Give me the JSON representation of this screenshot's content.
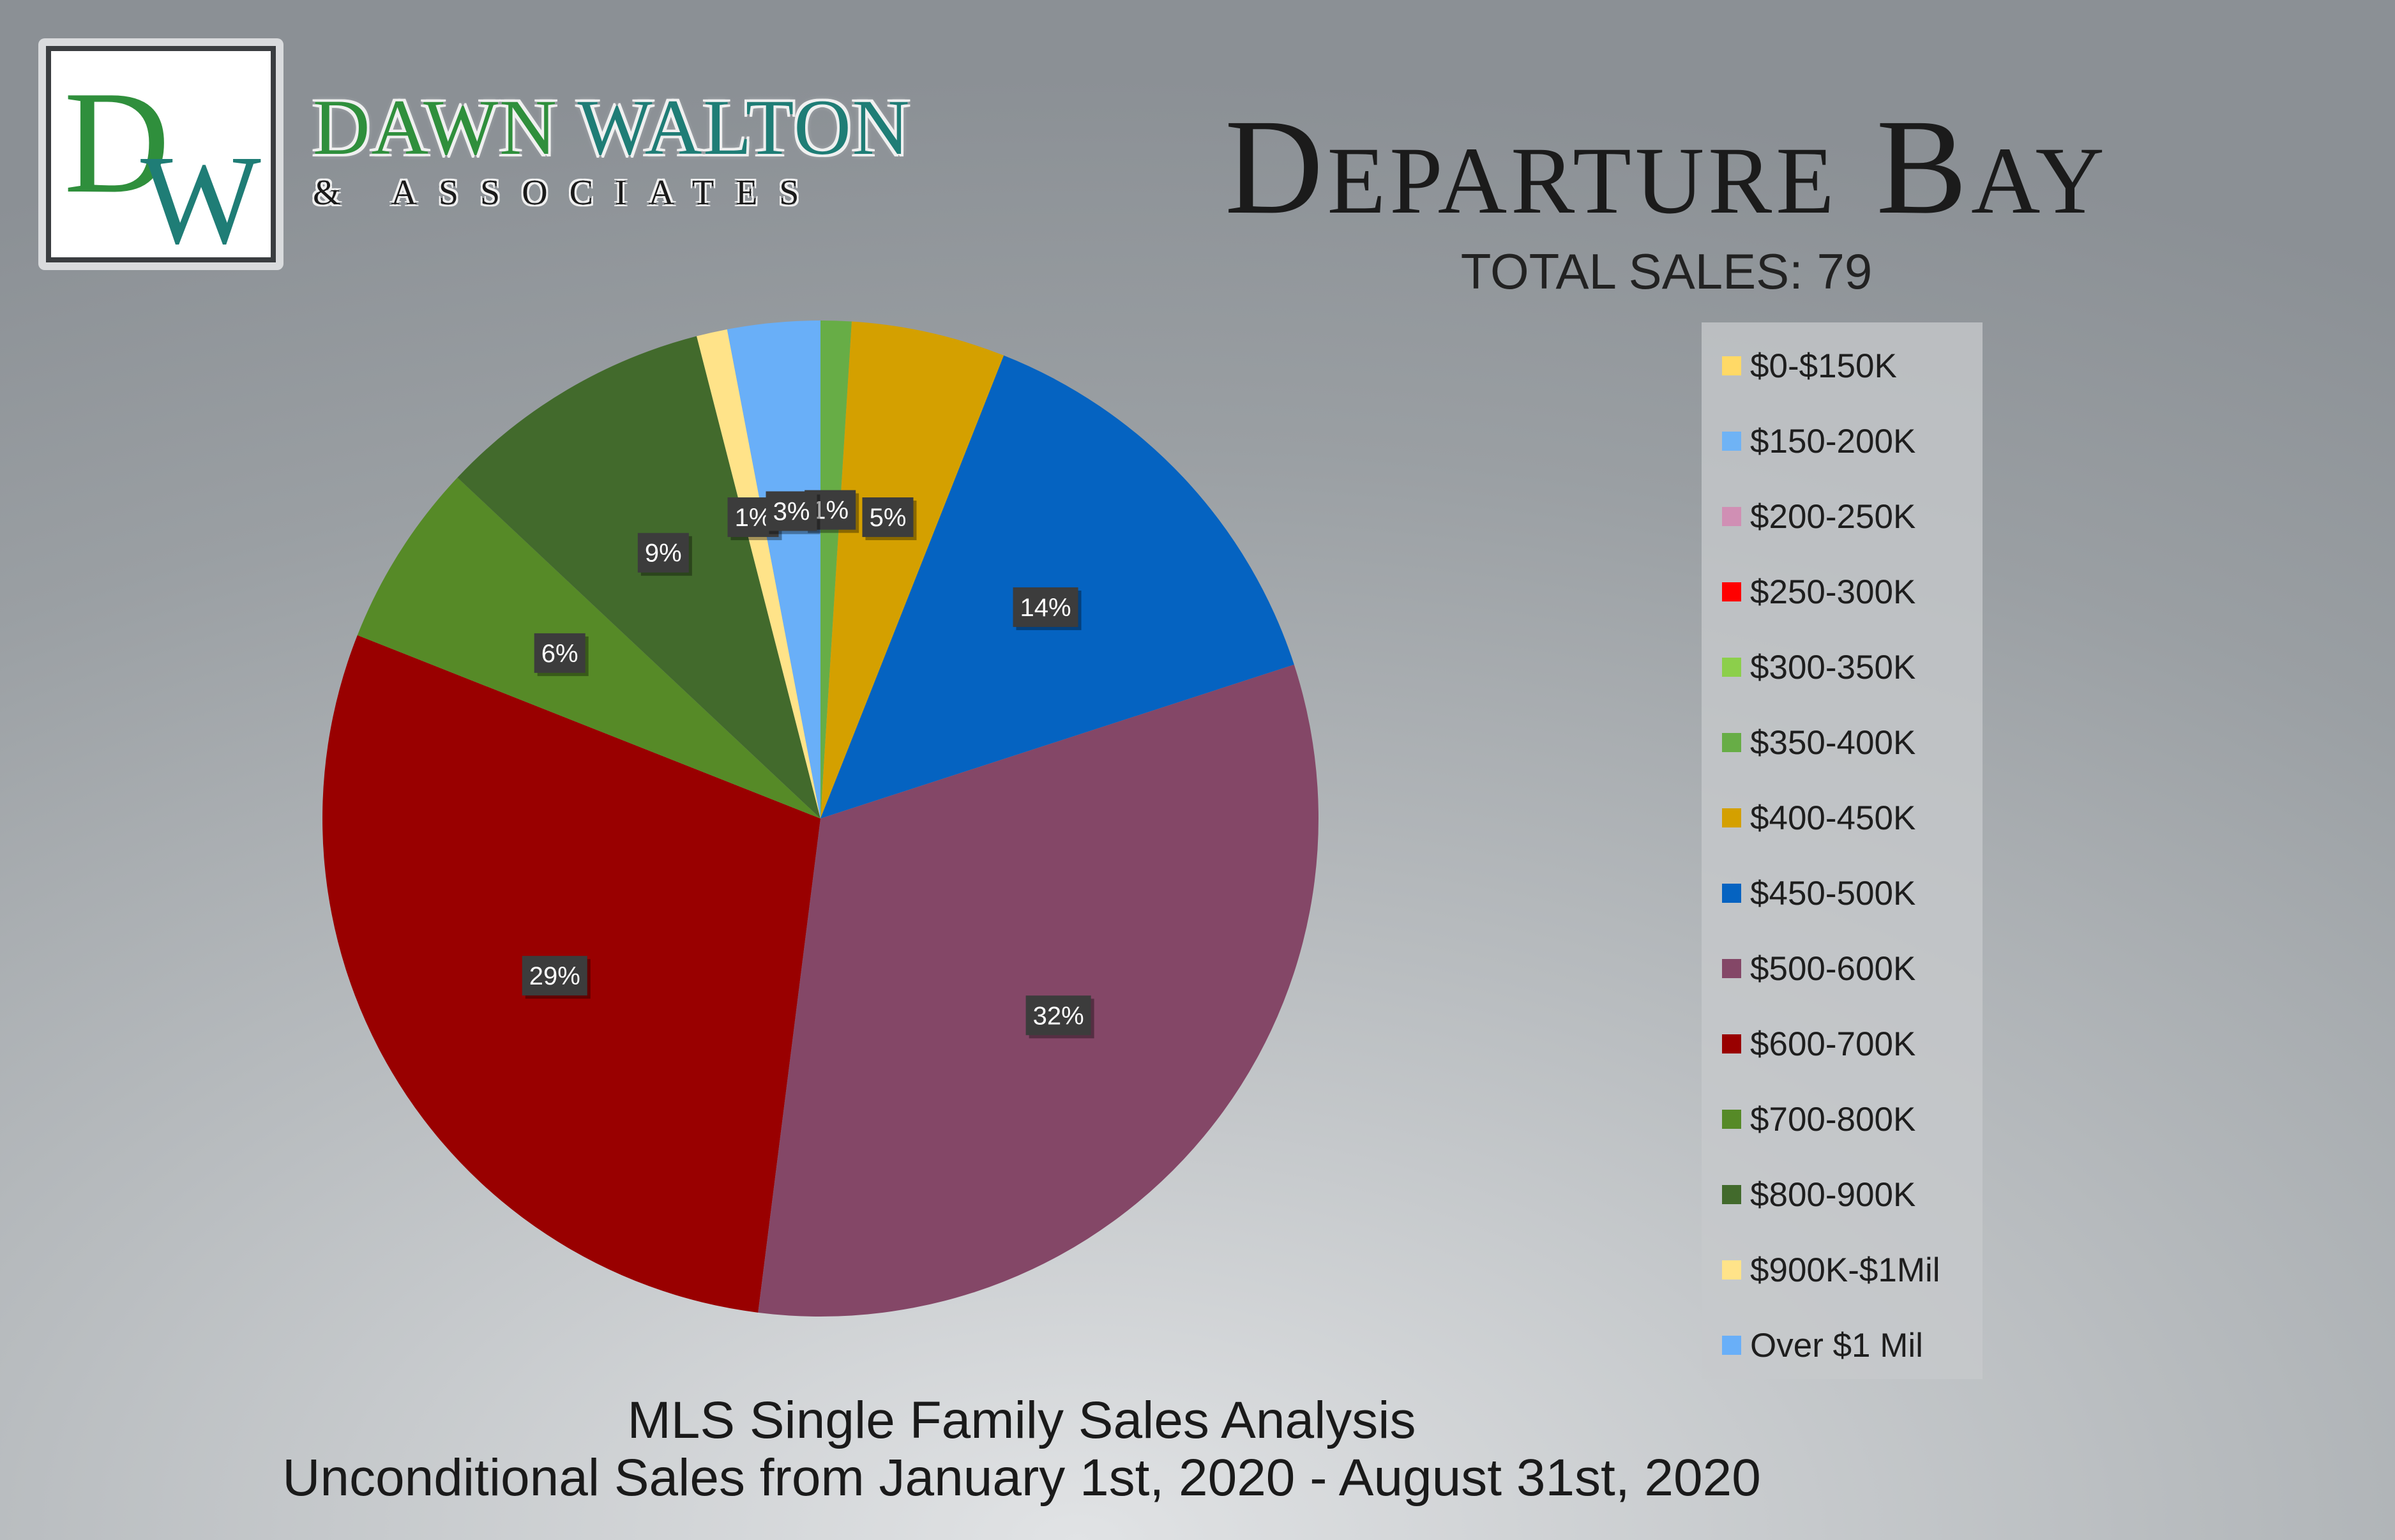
{
  "brand": {
    "logo_letters": "DW",
    "name_first": "DAWN",
    "name_last": "WALTON",
    "subtitle": "& ASSOCIATES"
  },
  "header": {
    "title": "Departure Bay",
    "total_sales": "TOTAL SALES: 79"
  },
  "chart_data": {
    "type": "pie",
    "title": "Departure Bay",
    "categories": [
      "$0-$150K",
      "$150-200K",
      "$200-250K",
      "$250-300K",
      "$300-350K",
      "$350-400K",
      "$400-450K",
      "$450-500K",
      "$500-600K",
      "$600-700K",
      "$700-800K",
      "$800-900K",
      "$900K-$1Mil",
      "Over $1 Mil"
    ],
    "values": [
      0,
      0,
      0,
      0,
      0,
      1,
      5,
      14,
      32,
      29,
      6,
      9,
      1,
      3
    ],
    "data_labels": [
      "",
      "",
      "",
      "",
      "",
      "1%",
      "5%",
      "14%",
      "32%",
      "29%",
      "6%",
      "9%",
      "1%",
      "3%"
    ],
    "colors": [
      "#ffd966",
      "#6fb3f5",
      "#d08fb4",
      "#ff0000",
      "#8ccf4b",
      "#67ad46",
      "#d4a000",
      "#0563c1",
      "#844767",
      "#990000",
      "#568a27",
      "#426a2c",
      "#ffe389",
      "#69aff8"
    ],
    "legend_position": "right"
  },
  "footer": {
    "line1": "MLS Single Family Sales Analysis",
    "line2": "Unconditional Sales from January 1st, 2020 - August 31st, 2020"
  }
}
